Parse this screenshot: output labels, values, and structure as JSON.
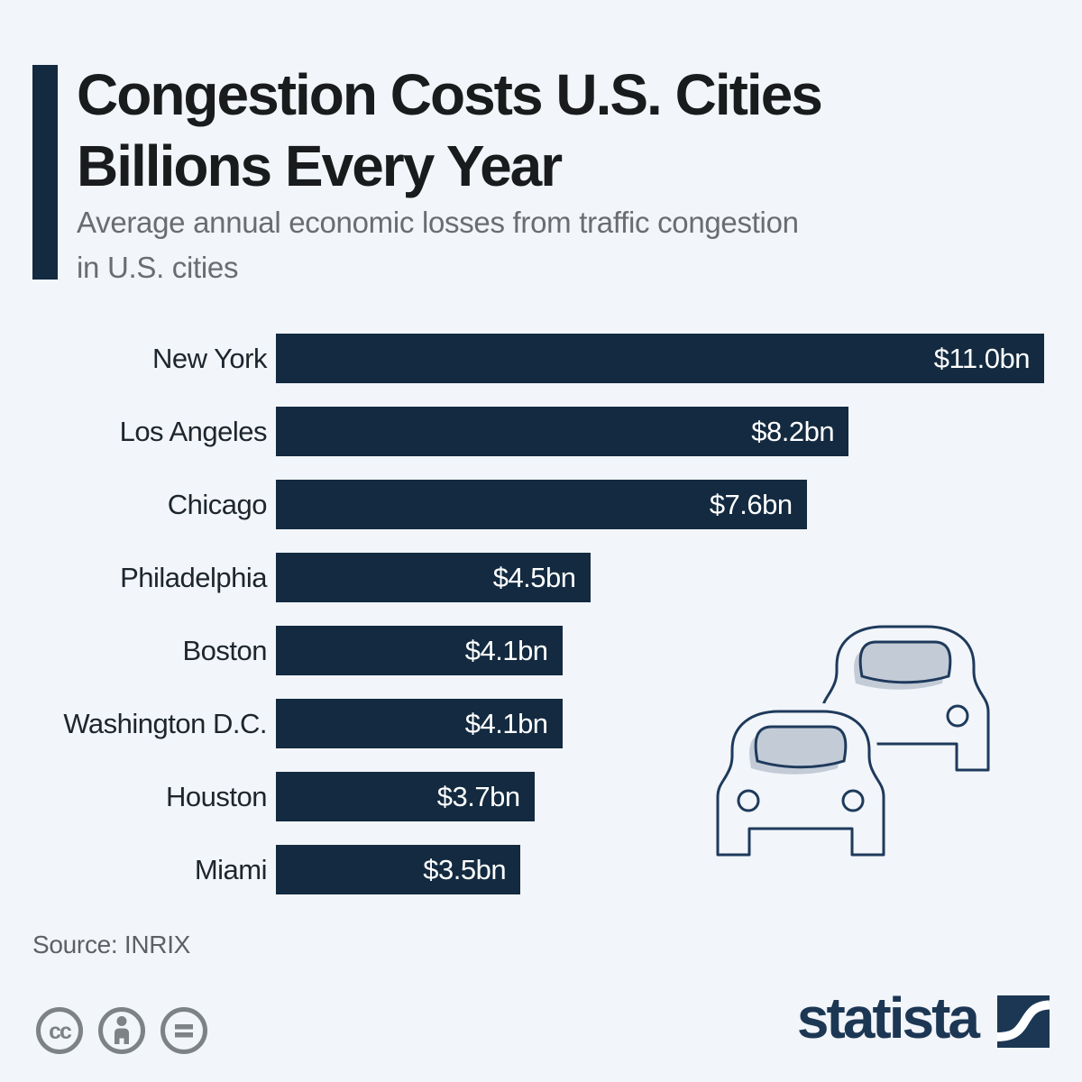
{
  "page": {
    "background_color": "#f2f5f9"
  },
  "header": {
    "accent_color": "#132a40",
    "title_lines": [
      "Congestion Costs U.S. Cities",
      "Billions Every Year"
    ],
    "subtitle_lines": [
      "Average annual economic losses from traffic congestion",
      "in U.S. cities"
    ]
  },
  "chart_data": {
    "type": "bar",
    "orientation": "horizontal",
    "title": "Congestion Costs U.S. Cities Billions Every Year",
    "subtitle": "Average annual economic losses from traffic congestion in U.S. cities",
    "categories": [
      "New York",
      "Los Angeles",
      "Chicago",
      "Philadelphia",
      "Boston",
      "Washington D.C.",
      "Houston",
      "Miami"
    ],
    "values": [
      11.0,
      8.2,
      7.6,
      4.5,
      4.1,
      4.1,
      3.7,
      3.5
    ],
    "value_labels": [
      "$11.0bn",
      "$8.2bn",
      "$7.6bn",
      "$4.5bn",
      "$4.1bn",
      "$4.1bn",
      "$3.7bn",
      "$3.5bn"
    ],
    "unit": "billion U.S. dollars per year",
    "xlim": [
      0,
      11.0
    ],
    "grid": false,
    "legend": false,
    "bar_color": "#132a40",
    "value_label_color": "#ffffff",
    "category_label_color": "#1d252d"
  },
  "illustration": {
    "name": "traffic-cars",
    "stroke_color": "#1e3a5c",
    "body_fill": "#f2f5f9",
    "windshield_color": "#c3cbd6"
  },
  "footer": {
    "source": "Source: INRIX",
    "license_icons": [
      {
        "name": "cc-icon",
        "meaning": "creative-commons"
      },
      {
        "name": "cc-by-icon",
        "meaning": "attribution"
      },
      {
        "name": "cc-nd-icon",
        "meaning": "no-derivatives"
      }
    ],
    "brand": {
      "name": "statista",
      "color": "#1c3754"
    }
  }
}
